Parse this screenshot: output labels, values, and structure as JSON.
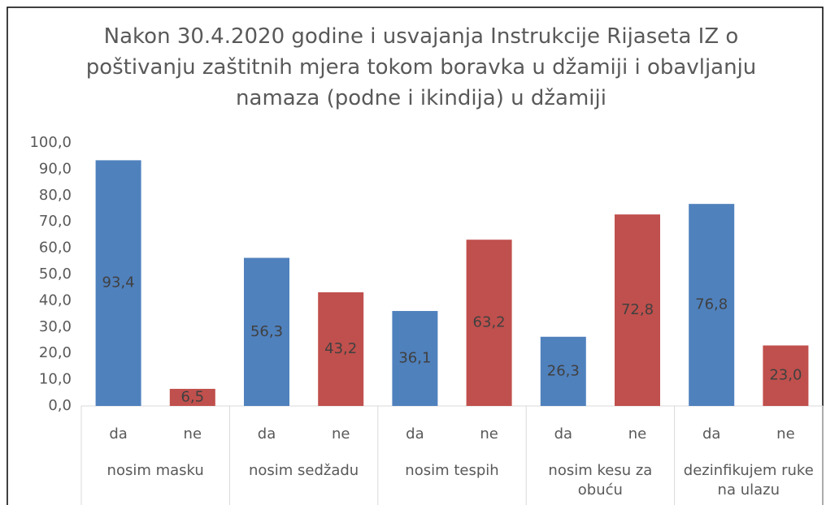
{
  "chart_data": {
    "type": "bar",
    "title": "Nakon 30.4.2020 godine i usvajanja Instrukcije Rijaseta IZ o poštivanju zaštitnih mjera tokom boravka u džamiji i obavljanju namaza (podne i ikindija) u džamiji",
    "categories": [
      "da",
      "ne",
      "da",
      "ne",
      "da",
      "ne",
      "da",
      "ne",
      "da",
      "ne"
    ],
    "groups": [
      "nosim masku",
      "nosim sedžadu",
      "nosim tespih",
      "nosim kesu za obuću",
      "dezinfikujem ruke na ulazu"
    ],
    "values": [
      93.4,
      6.5,
      56.3,
      43.2,
      36.1,
      63.2,
      26.3,
      72.8,
      76.8,
      23.0
    ],
    "value_labels": [
      "93,4",
      "6,5",
      "56,3",
      "43,2",
      "36,1",
      "63,2",
      "26,3",
      "72,8",
      "76,8",
      "23,0"
    ],
    "colors": [
      "#4f81bd",
      "#c0504d",
      "#4f81bd",
      "#c0504d",
      "#4f81bd",
      "#c0504d",
      "#4f81bd",
      "#c0504d",
      "#4f81bd",
      "#c0504d"
    ],
    "ylim": [
      0,
      100
    ],
    "yticks": [
      {
        "value": 0,
        "label": "0,0"
      },
      {
        "value": 10,
        "label": "10,0"
      },
      {
        "value": 20,
        "label": "20,0"
      },
      {
        "value": 30,
        "label": "30,0"
      },
      {
        "value": 40,
        "label": "40,0"
      },
      {
        "value": 50,
        "label": "50,0"
      },
      {
        "value": 60,
        "label": "60,0"
      },
      {
        "value": 70,
        "label": "70,0"
      },
      {
        "value": 80,
        "label": "80,0"
      },
      {
        "value": 90,
        "label": "90,0"
      },
      {
        "value": 100,
        "label": "100,0"
      }
    ],
    "grid": false
  }
}
